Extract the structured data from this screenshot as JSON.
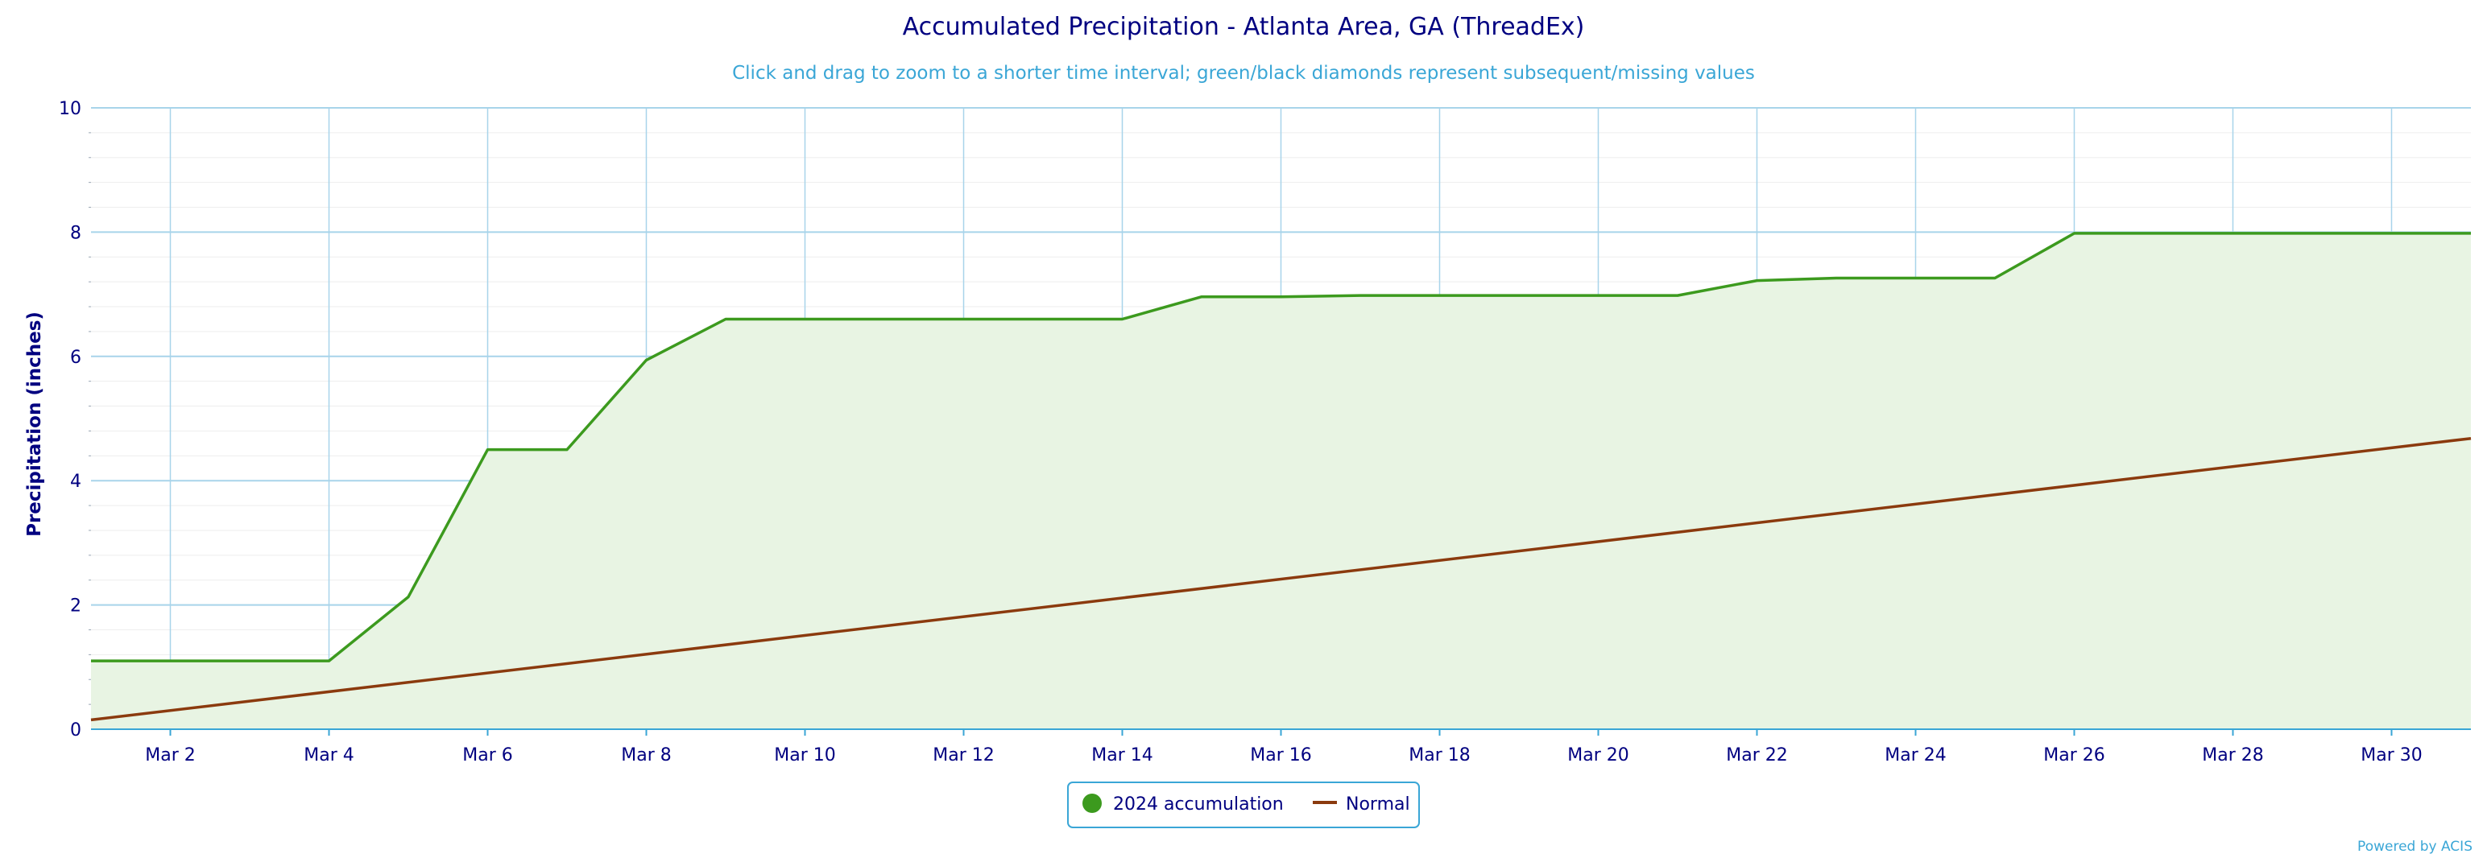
{
  "chart_data": {
    "type": "line",
    "title": "Accumulated Precipitation - Atlanta Area, GA (ThreadEx)",
    "subtitle": "Click and drag to zoom to a shorter time interval; green/black diamonds represent subsequent/missing values",
    "xlabel": "",
    "ylabel": "Precipitation (inches)",
    "xlim": [
      1,
      31
    ],
    "ylim": [
      0,
      10
    ],
    "x_ticks": [
      "Mar 2",
      "Mar 4",
      "Mar 6",
      "Mar 8",
      "Mar 10",
      "Mar 12",
      "Mar 14",
      "Mar 16",
      "Mar 18",
      "Mar 20",
      "Mar 22",
      "Mar 24",
      "Mar 26",
      "Mar 28",
      "Mar 30"
    ],
    "y_ticks": [
      "0",
      "2",
      "4",
      "6",
      "8",
      "10"
    ],
    "grid": true,
    "legend_position": "bottom-center",
    "series": [
      {
        "name": "2024 accumulation",
        "color": "#3c9a1e",
        "fill": "#e8f4e3",
        "x": [
          1,
          2,
          3,
          4,
          5,
          6,
          7,
          8,
          9,
          10,
          11,
          12,
          13,
          14,
          15,
          16,
          17,
          18,
          19,
          20,
          21,
          22,
          23,
          24,
          25,
          26,
          27,
          28,
          29,
          30,
          31
        ],
        "values": [
          1.1,
          1.1,
          1.1,
          1.1,
          2.13,
          4.5,
          4.5,
          5.94,
          6.6,
          6.6,
          6.6,
          6.6,
          6.6,
          6.6,
          6.96,
          6.96,
          6.98,
          6.98,
          6.98,
          6.98,
          6.98,
          7.22,
          7.26,
          7.26,
          7.26,
          7.98,
          7.98,
          7.98,
          7.98,
          7.98,
          7.98
        ]
      },
      {
        "name": "Normal",
        "color": "#8b3a0e",
        "x": [
          1,
          31
        ],
        "values": [
          0.15,
          4.68
        ]
      }
    ],
    "credit": "Powered by ACIS"
  }
}
